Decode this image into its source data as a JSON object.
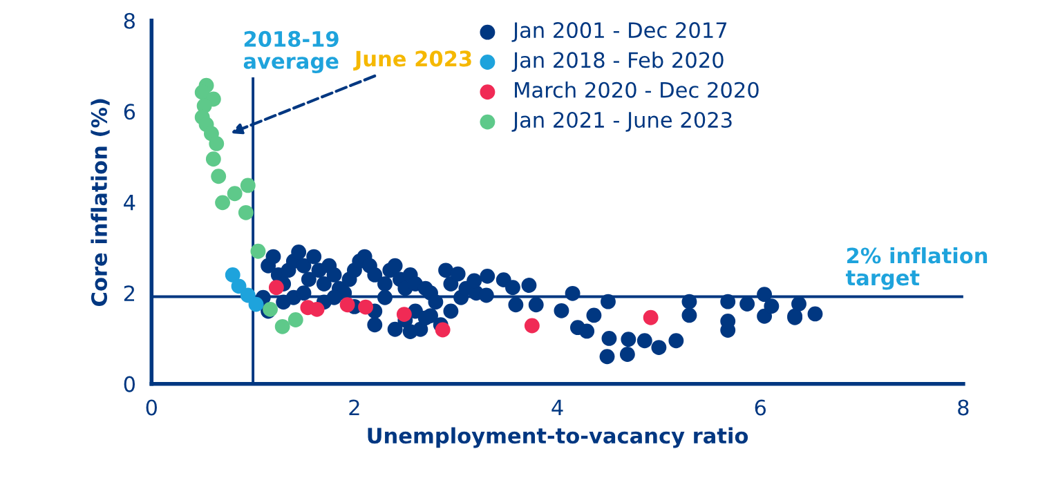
{
  "chart_data": {
    "type": "scatter",
    "xlabel": "Unemployment-to-vacancy ratio",
    "ylabel": "Core inflation (%)",
    "xlim": [
      0,
      8
    ],
    "ylim": [
      0,
      8
    ],
    "xticks": [
      0,
      2,
      4,
      6,
      8
    ],
    "yticks": [
      0,
      2,
      4,
      6,
      8
    ],
    "grid": false,
    "legend": "top right",
    "marker": "circle",
    "series": [
      {
        "name": "Jan 2001 - Dec 2017",
        "color": "#003781",
        "x": [
          1.15,
          1.2,
          1.25,
          1.3,
          1.35,
          1.4,
          1.45,
          1.5,
          1.55,
          1.6,
          1.65,
          1.7,
          1.75,
          1.8,
          1.85,
          1.9,
          1.95,
          2.0,
          2.05,
          2.1,
          2.15,
          2.2,
          2.3,
          2.35,
          2.4,
          2.45,
          2.5,
          2.55,
          2.6,
          2.7,
          2.75,
          2.8,
          2.9,
          2.95,
          1.15,
          1.3,
          1.4,
          1.5,
          1.7,
          1.8,
          2.0,
          2.2,
          2.3,
          2.4,
          2.5,
          2.6,
          2.65,
          2.75,
          2.85,
          2.95,
          3.05,
          3.1,
          3.2,
          3.3,
          1.1,
          2.2,
          2.55,
          2.7,
          3.02,
          3.18,
          3.31,
          3.47,
          3.56,
          3.72,
          3.59,
          3.79,
          4.04,
          4.15,
          4.2,
          4.29,
          4.36,
          4.5,
          4.51,
          4.49,
          4.69,
          4.7,
          4.86,
          5.0,
          5.17,
          5.3,
          5.3,
          5.68,
          5.68,
          5.68,
          5.87,
          6.04,
          6.04,
          6.11,
          6.34,
          6.38,
          6.34,
          6.54
        ],
        "values": [
          2.6,
          2.8,
          2.4,
          2.2,
          2.5,
          2.7,
          2.9,
          2.6,
          2.3,
          2.8,
          2.5,
          2.2,
          2.6,
          2.4,
          2.1,
          2.0,
          2.3,
          2.5,
          2.7,
          2.8,
          2.6,
          2.4,
          2.2,
          2.5,
          2.6,
          2.3,
          2.1,
          2.4,
          2.2,
          2.1,
          2.0,
          1.8,
          2.5,
          2.2,
          1.6,
          1.8,
          1.9,
          2.0,
          1.8,
          1.9,
          1.7,
          1.6,
          1.9,
          1.2,
          1.4,
          1.6,
          1.2,
          1.5,
          1.3,
          1.6,
          1.9,
          2.1,
          2.0,
          1.95,
          1.9,
          1.3,
          1.15,
          1.45,
          2.42,
          2.27,
          2.37,
          2.29,
          2.12,
          2.17,
          1.74,
          1.74,
          1.61,
          1.99,
          1.24,
          1.16,
          1.51,
          1.81,
          1.0,
          0.6,
          0.65,
          0.98,
          0.95,
          0.8,
          0.95,
          1.81,
          1.51,
          1.81,
          1.18,
          1.38,
          1.76,
          1.97,
          1.49,
          1.71,
          1.49,
          1.76,
          1.46,
          1.54
        ]
      },
      {
        "name": "Jan 2018 - Feb 2020",
        "color": "#1ea3dc",
        "x": [
          0.8,
          0.86,
          0.95,
          1.03
        ],
        "values": [
          2.4,
          2.15,
          1.95,
          1.75
        ]
      },
      {
        "name": "March 2020 - Dec 2020",
        "color": "#f02a55",
        "x": [
          1.23,
          1.54,
          1.63,
          1.93,
          2.11,
          2.49,
          2.87,
          3.75,
          4.92
        ],
        "values": [
          2.12,
          1.68,
          1.64,
          1.74,
          1.69,
          1.53,
          1.19,
          1.28,
          1.46
        ]
      },
      {
        "name": "Jan 2021 - June 2023",
        "color": "#5ec98a",
        "x": [
          0.54,
          0.5,
          0.61,
          0.52,
          0.5,
          0.54,
          0.59,
          0.64,
          0.61,
          0.66,
          0.82,
          0.7,
          0.95,
          0.93,
          1.05,
          1.17,
          1.29,
          1.42
        ],
        "values": [
          6.57,
          6.42,
          6.27,
          6.12,
          5.87,
          5.71,
          5.51,
          5.29,
          4.95,
          4.57,
          4.19,
          3.99,
          4.37,
          3.77,
          2.92,
          1.64,
          1.26,
          1.41
        ]
      }
    ],
    "ref_lines": [
      {
        "axis": "x",
        "value": 1,
        "label": "2018-19 average",
        "color": "#003781"
      },
      {
        "axis": "y",
        "value": 1.92,
        "label": "2% inflation target",
        "color": "#003781"
      }
    ],
    "annotations": [
      "June 2023"
    ]
  }
}
